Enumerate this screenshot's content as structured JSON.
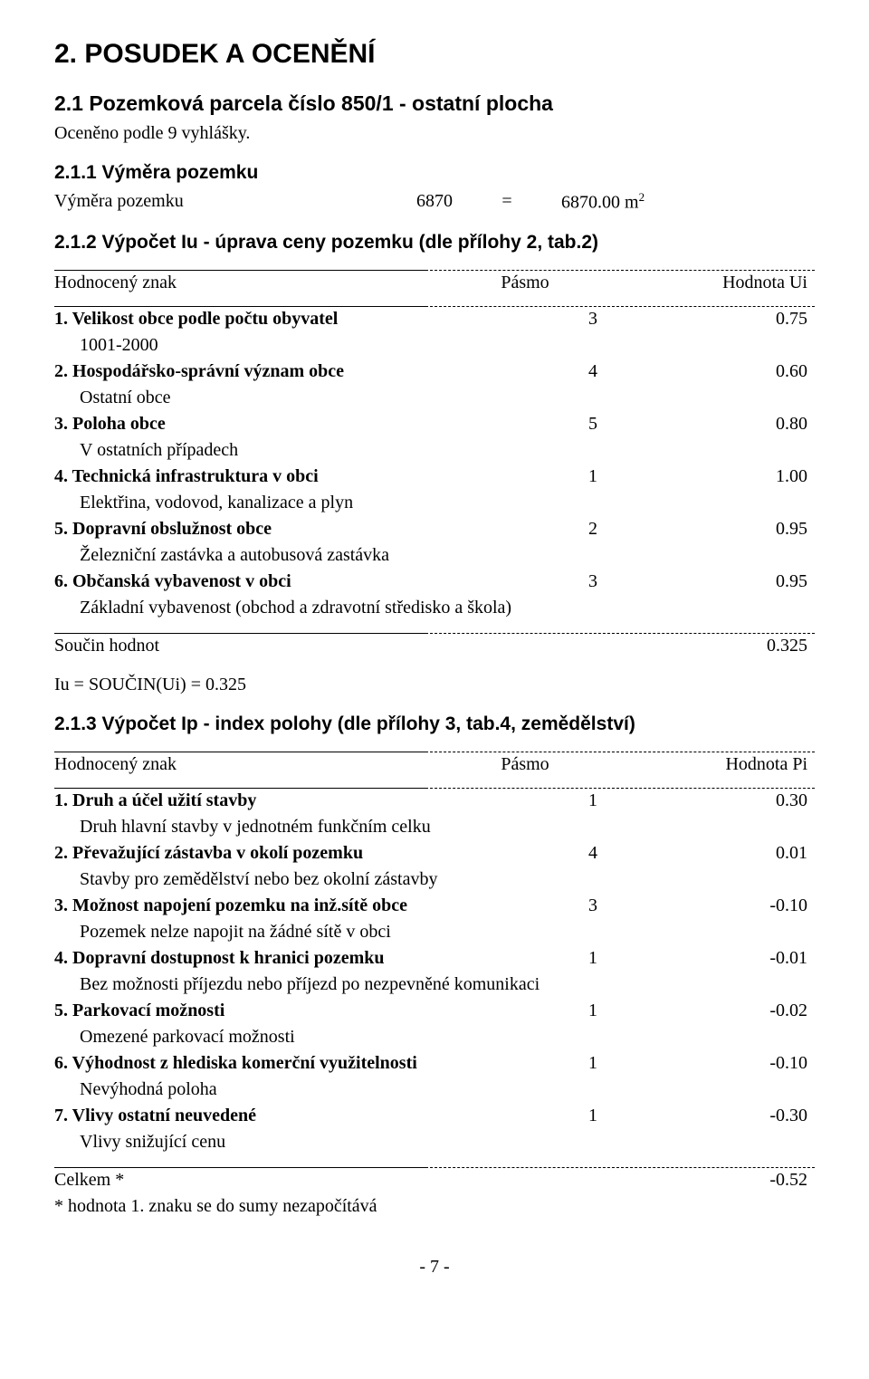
{
  "headings": {
    "h1": "2. POSUDEK A OCENĚNÍ",
    "h2": "2.1 Pozemková parcela číslo 850/1 - ostatní plocha",
    "sub1": "Oceněno podle 9 vyhlášky.",
    "h3a": "2.1.1 Výměra pozemku",
    "h3b": "2.1.2 Výpočet Iu - úprava ceny pozemku (dle přílohy 2, tab.2)",
    "h3c": "2.1.3 Výpočet Ip - index polohy (dle přílohy 3, tab.4, zemědělství)"
  },
  "vymera": {
    "label": "Výměra pozemku",
    "value": "6870",
    "eq": "=",
    "result_pre": "6870.00 m",
    "result_sup": "2"
  },
  "tbl1": {
    "head": {
      "c1": "Hodnocený znak",
      "c2": "Pásmo",
      "c3": "Hodnota Ui"
    },
    "rows": [
      {
        "b": "1. Velikost obce podle počtu obyvatel",
        "p": "3",
        "v": "0.75",
        "d": "1001-2000"
      },
      {
        "b": "2. Hospodářsko-správní význam obce",
        "p": "4",
        "v": "0.60",
        "d": "Ostatní obce"
      },
      {
        "b": "3. Poloha obce",
        "p": "5",
        "v": "0.80",
        "d": "V ostatních případech"
      },
      {
        "b": "4. Technická infrastruktura v obci",
        "p": "1",
        "v": "1.00",
        "d": "Elektřina, vodovod, kanalizace a plyn"
      },
      {
        "b": "5. Dopravní obslužnost obce",
        "p": "2",
        "v": "0.95",
        "d": "Železniční zastávka a autobusová zastávka"
      },
      {
        "b": "6. Občanská vybavenost v obci",
        "p": "3",
        "v": "0.95",
        "d": "Základní vybavenost (obchod a zdravotní středisko a škola)"
      }
    ],
    "foot": {
      "label": "Součin hodnot",
      "val": "0.325"
    },
    "note": "Iu = SOUČIN(Ui) = 0.325"
  },
  "tbl2": {
    "head": {
      "c1": "Hodnocený znak",
      "c2": "Pásmo",
      "c3": "Hodnota Pi"
    },
    "rows": [
      {
        "b": "1. Druh a účel užití stavby",
        "p": "1",
        "v": "0.30",
        "d": "Druh hlavní stavby v jednotném funkčním celku"
      },
      {
        "b": "2. Převažující zástavba v okolí pozemku",
        "p": "4",
        "v": "0.01",
        "d": "Stavby pro zemědělství nebo bez okolní zástavby"
      },
      {
        "b": "3. Možnost napojení pozemku na inž.sítě obce",
        "p": "3",
        "v": "-0.10",
        "d": "Pozemek nelze napojit na žádné sítě v obci"
      },
      {
        "b": "4. Dopravní dostupnost k hranici pozemku",
        "p": "1",
        "v": "-0.01",
        "d": "Bez možnosti příjezdu nebo příjezd po nezpevněné komunikaci"
      },
      {
        "b": "5. Parkovací možnosti",
        "p": "1",
        "v": "-0.02",
        "d": "Omezené parkovací možnosti"
      },
      {
        "b": "6. Výhodnost z hlediska komerční využitelnosti",
        "p": "1",
        "v": "-0.10",
        "d": "Nevýhodná poloha"
      },
      {
        "b": "7. Vlivy ostatní neuvedené",
        "p": "1",
        "v": "-0.30",
        "d": "Vlivy snižující cenu"
      }
    ],
    "foot": {
      "label": "Celkem *",
      "val": "-0.52"
    },
    "note": "* hodnota 1. znaku se do sumy nezapočítává"
  },
  "page_num": "- 7 -"
}
